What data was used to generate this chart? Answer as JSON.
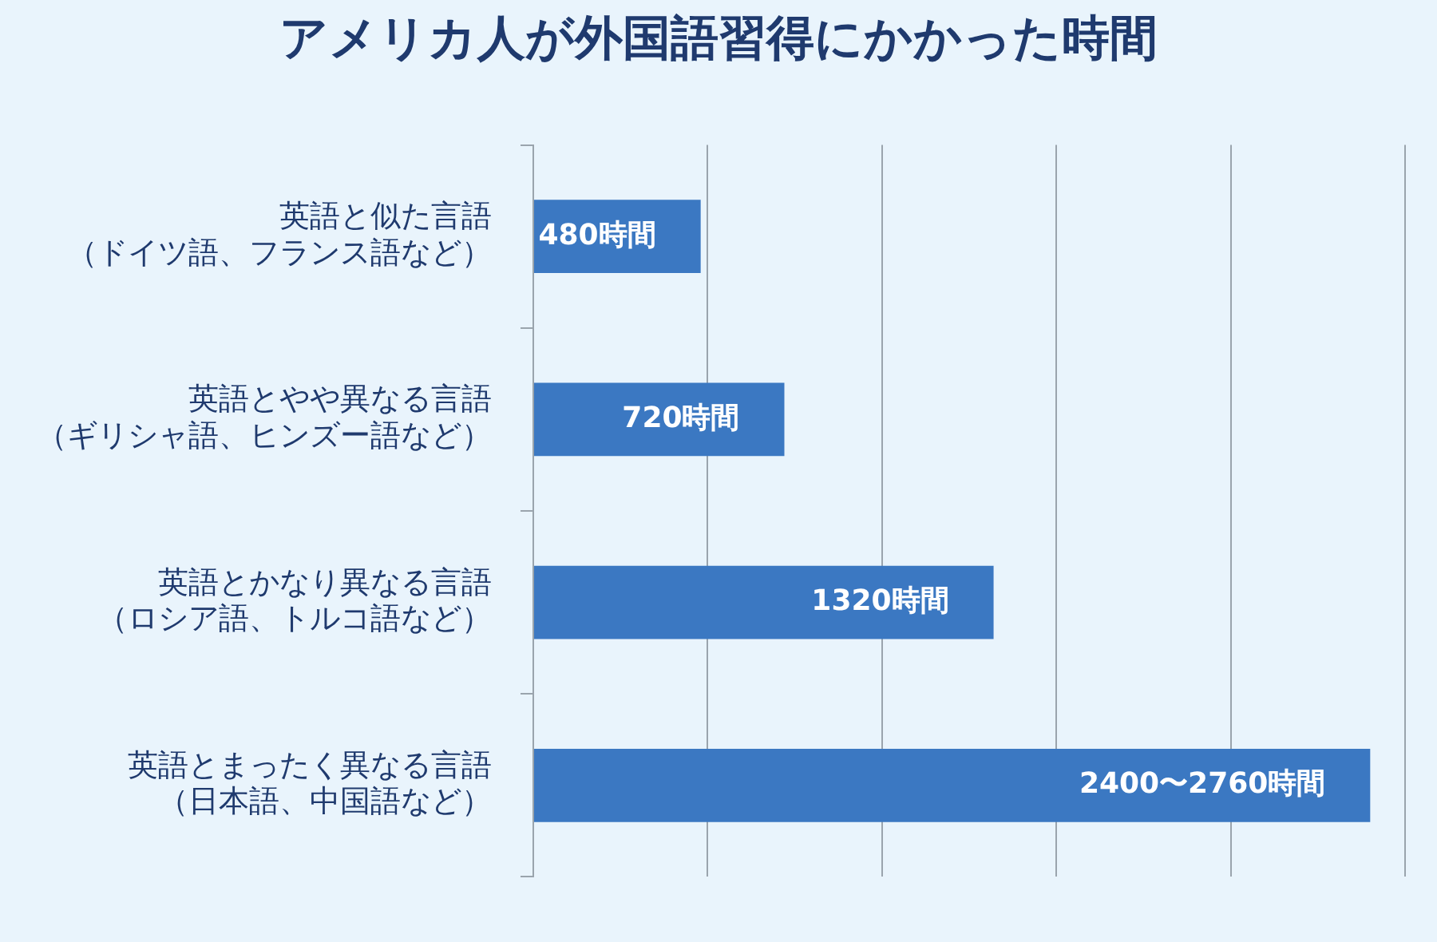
{
  "chart_data": {
    "type": "bar",
    "orientation": "horizontal",
    "title": "アメリカ人が外国語習得にかかった時間",
    "categories": [
      "英語と似た言語（ドイツ語、フランス語など）",
      "英語とやや異なる言語（ギリシャ語、ヒンズー語など）",
      "英語とかなり異なる言語（ロシア語、トルコ語など）",
      "英語とまったく異なる言語（日本語、中国語など）"
    ],
    "values": [
      480,
      720,
      1320,
      2400
    ],
    "value_labels": [
      "480時間",
      "720時間",
      "1320時間",
      "2400〜2760時間"
    ],
    "color": "#3b78c2",
    "xlim": [
      0,
      2500
    ],
    "xticks": [
      {
        "value": 0,
        "label": null
      },
      {
        "value": 500,
        "label": null
      },
      {
        "value": 1000,
        "label": null
      },
      {
        "value": 1500,
        "label": null
      },
      {
        "value": 2000,
        "label": null
      },
      {
        "value": 2500,
        "label": null
      }
    ],
    "tick_labels": "y",
    "grid": "x",
    "legend": false
  }
}
